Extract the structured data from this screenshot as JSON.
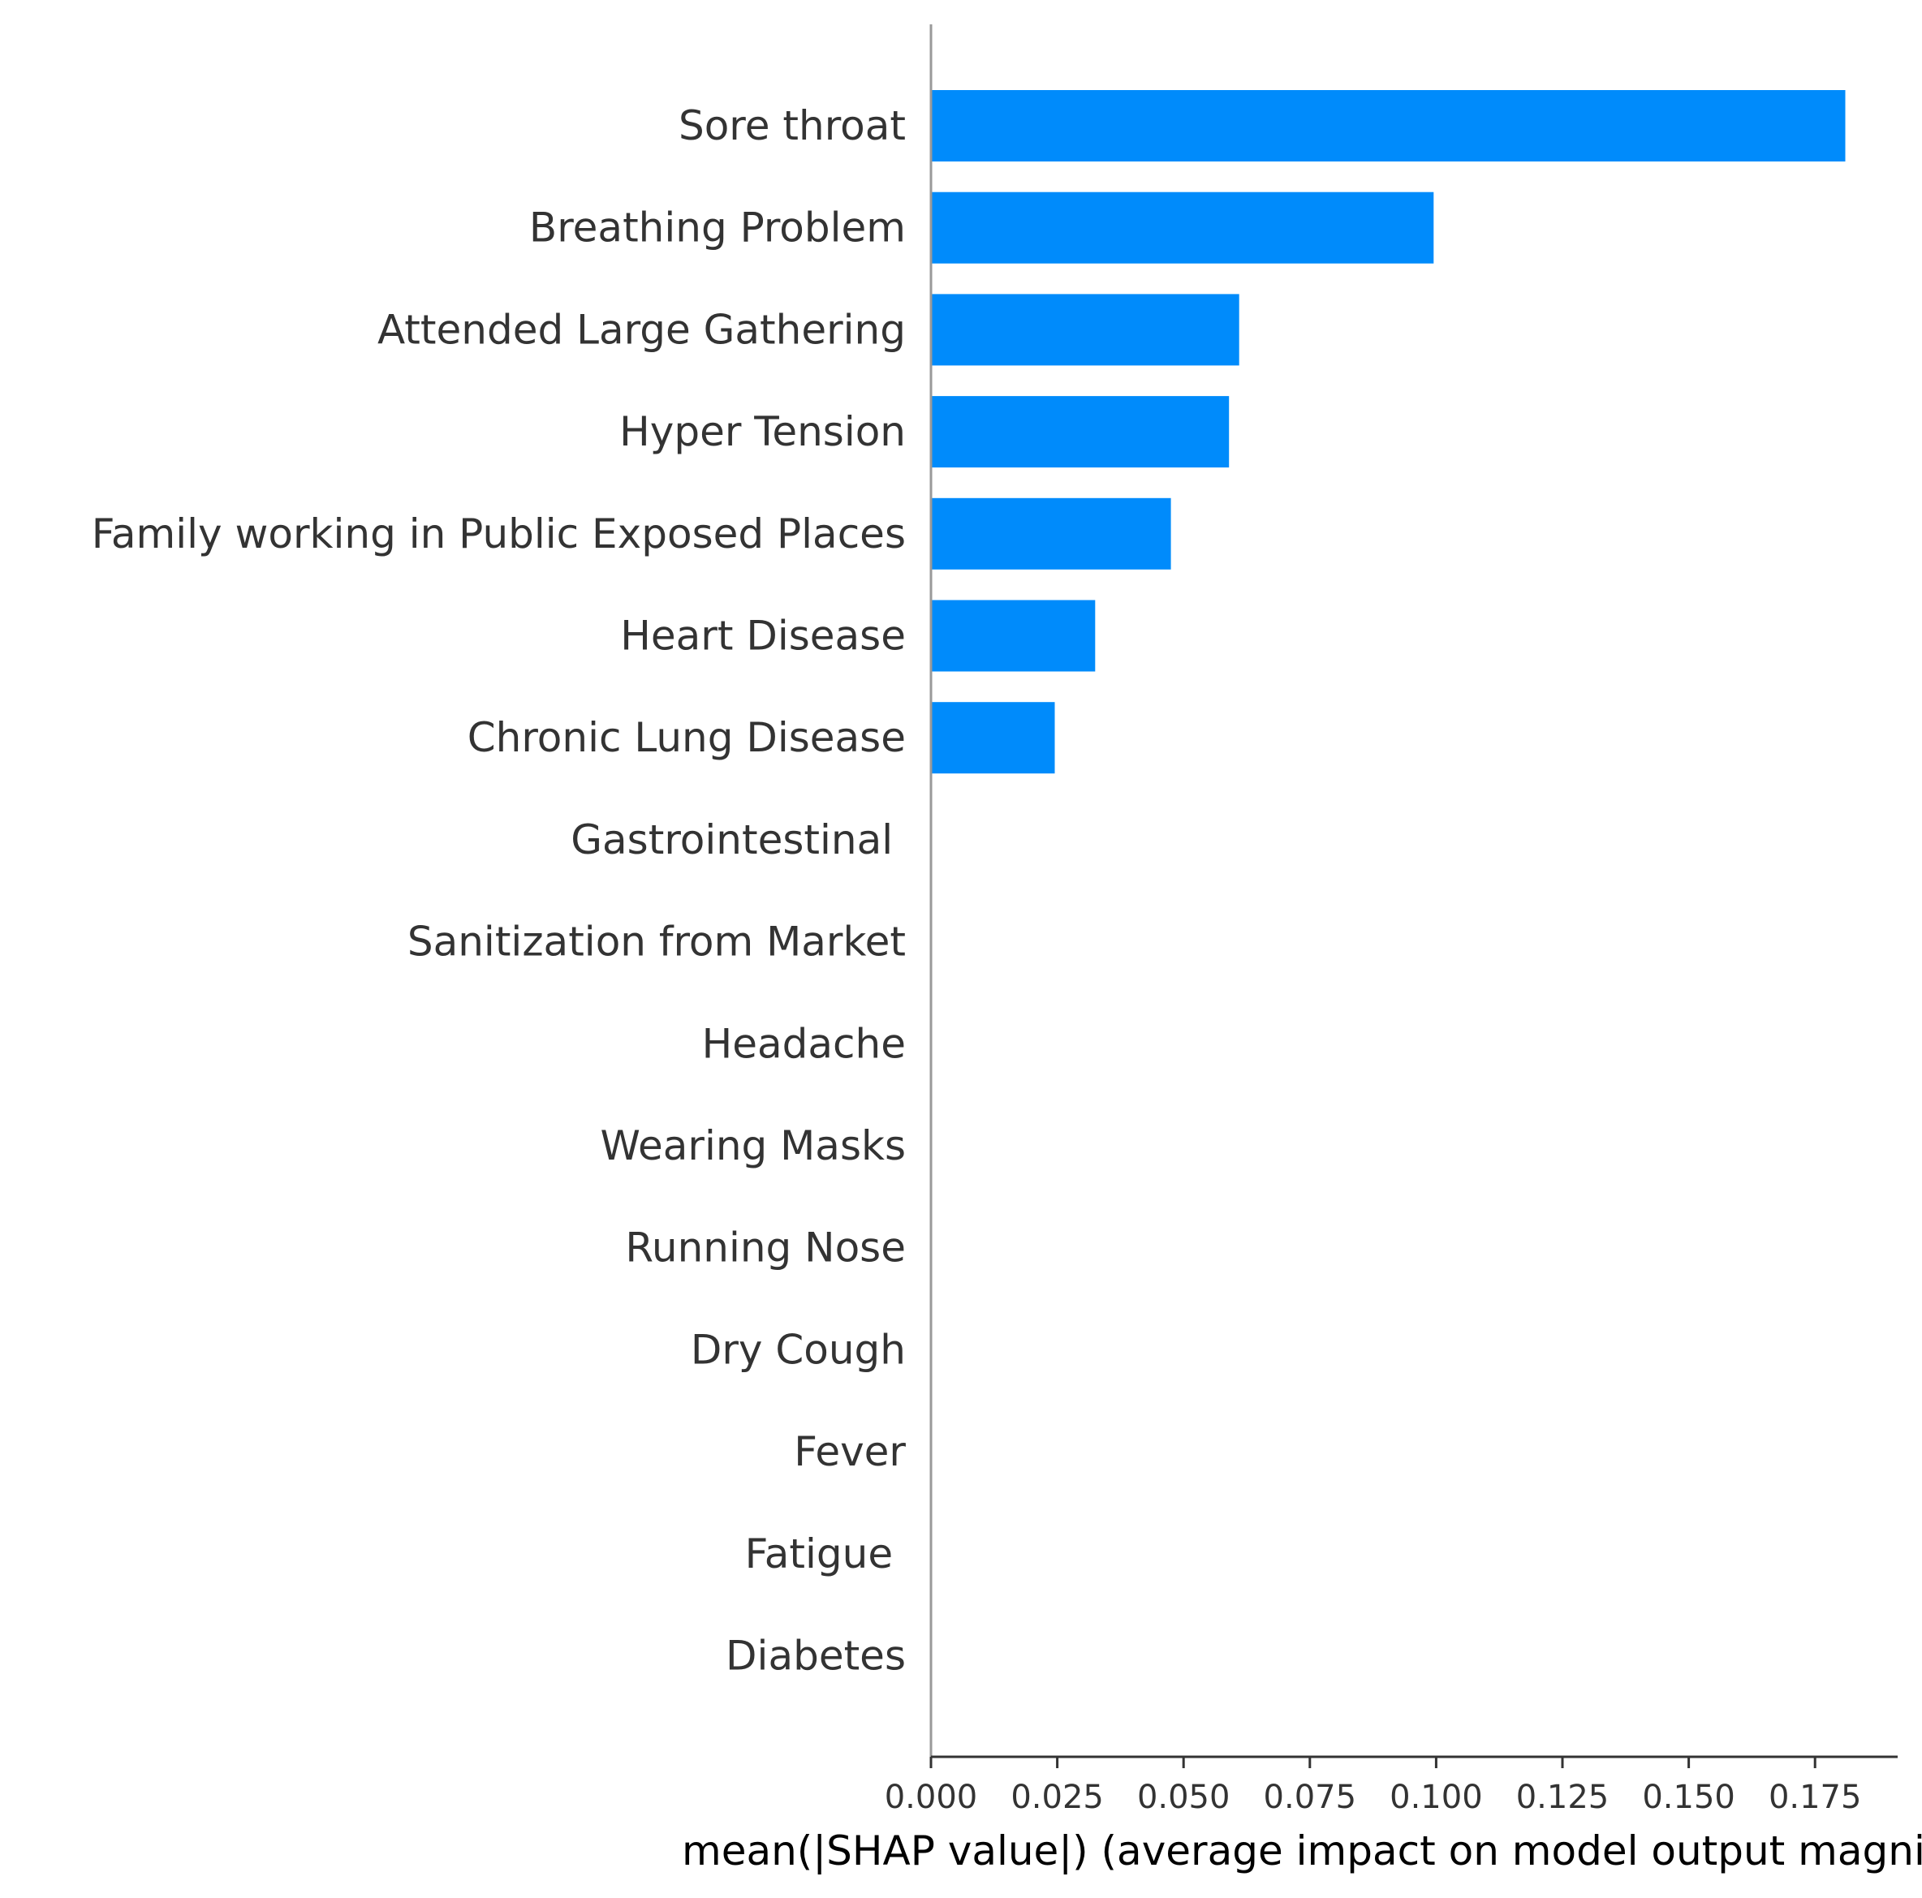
{
  "chart_data": {
    "type": "bar",
    "orientation": "horizontal",
    "categories": [
      "Sore throat",
      "Breathing Problem",
      "Attended Large Gathering",
      "Hyper Tension",
      "Family working in Public Exposed Places",
      "Heart Disease",
      "Chronic Lung Disease",
      "Gastrointestinal ",
      "Sanitization from Market",
      "Headache",
      "Wearing Masks",
      "Running Nose",
      "Dry Cough",
      "Fever",
      "Fatigue ",
      "Diabetes"
    ],
    "values": [
      0.181,
      0.0995,
      0.061,
      0.059,
      0.0475,
      0.0325,
      0.0245,
      0,
      0,
      0,
      0,
      0,
      0,
      0,
      0,
      0
    ],
    "xlabel": "mean(|SHAP value|) (average impact on model output magnitude)",
    "ylabel": "",
    "title": "",
    "xlim": [
      0,
      0.19
    ],
    "xticks": [
      0.0,
      0.025,
      0.05,
      0.075,
      0.1,
      0.125,
      0.15,
      0.175
    ],
    "xtick_labels": [
      "0.000",
      "0.025",
      "0.050",
      "0.075",
      "0.100",
      "0.125",
      "0.150",
      "0.175"
    ],
    "bar_color": "#008bfb",
    "axis_color": "#333333",
    "grid": false,
    "legend": "none"
  }
}
